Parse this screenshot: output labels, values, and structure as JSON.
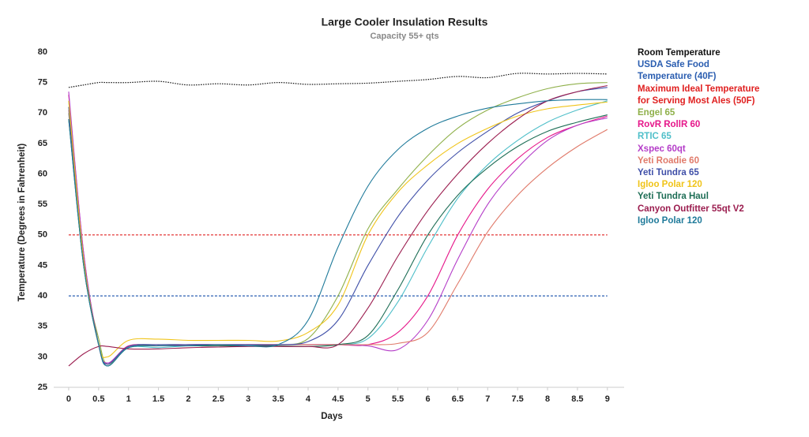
{
  "chart_data": {
    "type": "line",
    "title": "Large Cooler Insulation Results",
    "subtitle": "Capacity 55+ qts",
    "x_label": "Days",
    "y_label": "Temperature (Degrees in Fahrenheit)",
    "x": [
      0,
      0.25,
      0.5,
      0.65,
      1,
      1.5,
      2,
      2.5,
      3,
      3.5,
      4,
      4.5,
      5,
      5.5,
      6,
      6.5,
      7,
      7.5,
      8,
      8.5,
      9
    ],
    "xlim": [
      -0.25,
      9.28
    ],
    "ylim": [
      25,
      80
    ],
    "xticks": [
      0,
      0.5,
      1,
      1.5,
      2,
      2.5,
      3,
      3.5,
      4,
      4.5,
      5,
      5.5,
      6,
      6.5,
      7,
      7.5,
      8,
      8.5,
      9
    ],
    "yticks": [
      25,
      30,
      35,
      40,
      45,
      50,
      55,
      60,
      65,
      70,
      75,
      80
    ],
    "legend": "right",
    "series": [
      {
        "name": "Room Temperature",
        "color": "#111111",
        "style": "dotted",
        "values": [
          74.2,
          74.6,
          75,
          75,
          75,
          75.2,
          74.6,
          74.8,
          74.6,
          75,
          74.7,
          74.8,
          74.9,
          75.2,
          75.5,
          76,
          75.8,
          76.5,
          76.4,
          76.5,
          76.4
        ]
      },
      {
        "name": "USDA Safe Food Temperature (40F)",
        "color": "#2a5db0",
        "style": "dashed",
        "values": [
          40,
          40,
          40,
          40,
          40,
          40,
          40,
          40,
          40,
          40,
          40,
          40,
          40,
          40,
          40,
          40,
          40,
          40,
          40,
          40,
          40
        ]
      },
      {
        "name": "Maximum Ideal Temperature for Serving Most Ales (50F)",
        "color": "#e02020",
        "style": "dashed",
        "values": [
          50,
          50,
          50,
          50,
          50,
          50,
          50,
          50,
          50,
          50,
          50,
          50,
          50,
          50,
          50,
          50,
          50,
          50,
          50,
          50,
          50
        ]
      },
      {
        "name": "Engel 65",
        "color": "#8fb04a",
        "style": "solid",
        "values": [
          70,
          45,
          33,
          28.8,
          31.5,
          31.8,
          32,
          32,
          32,
          32,
          33,
          40,
          51,
          57.5,
          63,
          67.5,
          70.5,
          72.5,
          74,
          74.8,
          75
        ]
      },
      {
        "name": "RovR RollR 60",
        "color": "#e6178a",
        "style": "solid",
        "values": [
          73,
          47,
          32,
          28.8,
          31.8,
          31.8,
          32,
          32,
          32,
          32,
          32,
          32,
          32,
          34,
          40,
          50,
          57.5,
          62.5,
          66,
          68,
          69.5
        ]
      },
      {
        "name": "RTIC 65",
        "color": "#4fbfc9",
        "style": "solid",
        "values": [
          72,
          46,
          32,
          28.5,
          31.5,
          31.5,
          31.8,
          31.8,
          31.8,
          32,
          32,
          32,
          33,
          39,
          48,
          56,
          61.5,
          65.5,
          68.5,
          70.5,
          72
        ]
      },
      {
        "name": "Xspec 60qt",
        "color": "#b43cc8",
        "style": "solid",
        "values": [
          73.5,
          47,
          32,
          29,
          31.7,
          31.8,
          31.8,
          31.8,
          32,
          32,
          32,
          32,
          31.8,
          31.2,
          36,
          46,
          55,
          61,
          65.5,
          68,
          69.2
        ]
      },
      {
        "name": "Yeti Roadie 60",
        "color": "#e07a6a",
        "style": "solid",
        "values": [
          70.5,
          46,
          32,
          28.8,
          31.7,
          31.8,
          31.8,
          31.8,
          32,
          32,
          32,
          32,
          32,
          32.2,
          34,
          42,
          50.5,
          56.5,
          61,
          64.5,
          67.3
        ]
      },
      {
        "name": "Yeti Tundra 65",
        "color": "#3f4fa8",
        "style": "solid",
        "values": [
          71,
          46,
          32,
          28.8,
          31.7,
          32,
          32,
          32,
          32,
          32,
          32.5,
          36,
          45,
          53,
          59,
          63.5,
          67,
          70,
          72,
          73.5,
          74.2
        ]
      },
      {
        "name": "Igloo Polar 120",
        "color": "#f0c419",
        "style": "solid",
        "values": [
          72,
          46,
          32,
          30,
          32.7,
          32.9,
          32.7,
          32.7,
          32.7,
          32.6,
          34,
          38.5,
          50,
          57,
          61.5,
          65,
          67.5,
          69.5,
          70.7,
          71.3,
          71.8
        ]
      },
      {
        "name": "Yeti Tundra Haul",
        "color": "#1e6e56",
        "style": "solid",
        "values": [
          69,
          45,
          32,
          28.5,
          31.5,
          31.8,
          31.8,
          31.8,
          31.8,
          31.8,
          31.7,
          32,
          33.5,
          41,
          50,
          56.5,
          61,
          64.5,
          67,
          68.5,
          69.7
        ]
      },
      {
        "name": "Canyon Outfitter 55qt V2",
        "color": "#9b1d4f",
        "style": "solid",
        "values": [
          28.5,
          30.5,
          31.7,
          31.7,
          31.3,
          31.3,
          31.5,
          31.6,
          31.7,
          31.7,
          31.7,
          32,
          38,
          46.5,
          54,
          60,
          65,
          69,
          72,
          73.5,
          74.5
        ]
      },
      {
        "name": "Igloo Polar 120",
        "color": "#1f7a9a",
        "style": "solid",
        "values": [
          69,
          45,
          32,
          28.5,
          31.5,
          31.8,
          31.8,
          32,
          31.8,
          32,
          36,
          48,
          58,
          64,
          67.5,
          69.5,
          70.8,
          71.5,
          72,
          72.2,
          72.2
        ]
      }
    ]
  }
}
